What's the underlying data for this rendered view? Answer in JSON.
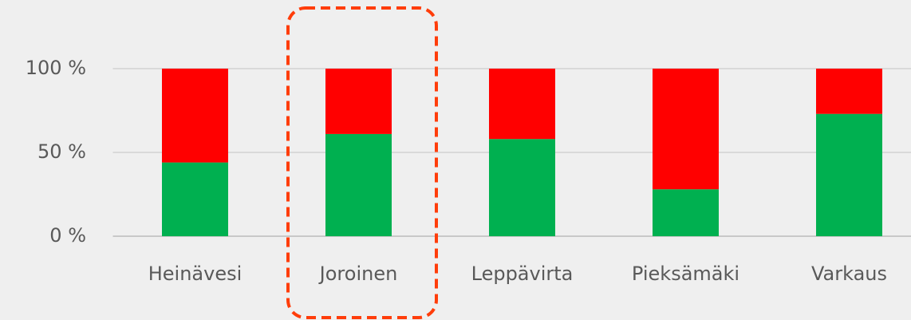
{
  "chart_data": {
    "type": "stacked_bar",
    "categories": [
      "Heinävesi",
      "Joroinen",
      "Leppävirta",
      "Pieksämäki",
      "Varkaus"
    ],
    "series": [
      {
        "color": "#00b050",
        "values": [
          44,
          61,
          58,
          28,
          73
        ]
      },
      {
        "color": "#ff0000",
        "values": [
          56,
          39,
          42,
          72,
          27
        ]
      }
    ],
    "ylim": [
      0,
      100
    ],
    "yticks": [
      {
        "value": 0,
        "label": "0 %"
      },
      {
        "value": 50,
        "label": "50 %"
      },
      {
        "value": 100,
        "label": "100 %"
      }
    ],
    "grid": true
  }
}
